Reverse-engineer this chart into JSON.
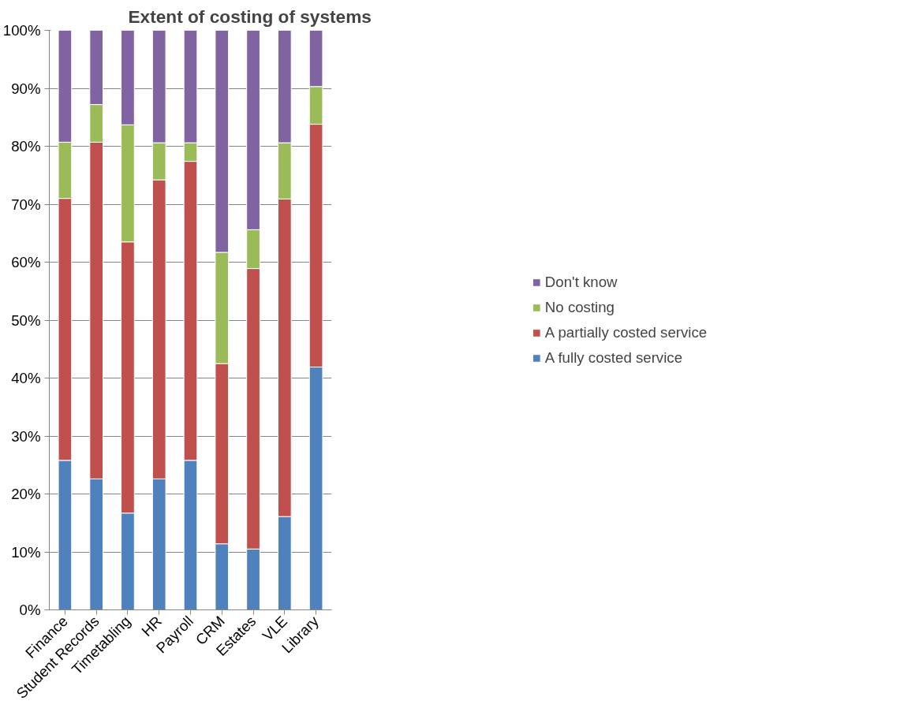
{
  "chart_data": {
    "type": "bar",
    "title": "Extent of costing of systems",
    "stacked": true,
    "categories": [
      "Finance",
      "Student Records",
      "Timetabling",
      "HR",
      "Payroll",
      "CRM",
      "Estates",
      "VLE",
      "Library"
    ],
    "series": [
      {
        "name": "A fully costed service",
        "color": "#4f81bd",
        "values": [
          25.8,
          22.6,
          16.7,
          22.6,
          25.8,
          11.4,
          10.5,
          16.1,
          41.9
        ]
      },
      {
        "name": "A partially costed service",
        "color": "#c0504d",
        "values": [
          45.2,
          58.1,
          46.8,
          51.6,
          51.6,
          31.1,
          48.4,
          54.8,
          41.9
        ]
      },
      {
        "name": "No costing",
        "color": "#9bbb59",
        "values": [
          9.7,
          6.5,
          20.2,
          6.4,
          3.2,
          19.2,
          6.7,
          9.7,
          6.5
        ]
      },
      {
        "name": "Don't know",
        "color": "#8064a2",
        "values": [
          19.3,
          12.8,
          16.3,
          19.4,
          19.4,
          38.3,
          34.4,
          19.4,
          9.7
        ]
      }
    ],
    "ylim": [
      0,
      100
    ],
    "yticks": [
      {
        "value": 0,
        "label": "0%"
      },
      {
        "value": 10,
        "label": "10%"
      },
      {
        "value": 20,
        "label": "20%"
      },
      {
        "value": 30,
        "label": "30%"
      },
      {
        "value": 40,
        "label": "40%"
      },
      {
        "value": 50,
        "label": "50%"
      },
      {
        "value": 60,
        "label": "60%"
      },
      {
        "value": 70,
        "label": "70%"
      },
      {
        "value": 80,
        "label": "80%"
      },
      {
        "value": 90,
        "label": "90%"
      },
      {
        "value": 100,
        "label": "100%"
      }
    ],
    "grid": "y",
    "legend": "right"
  }
}
